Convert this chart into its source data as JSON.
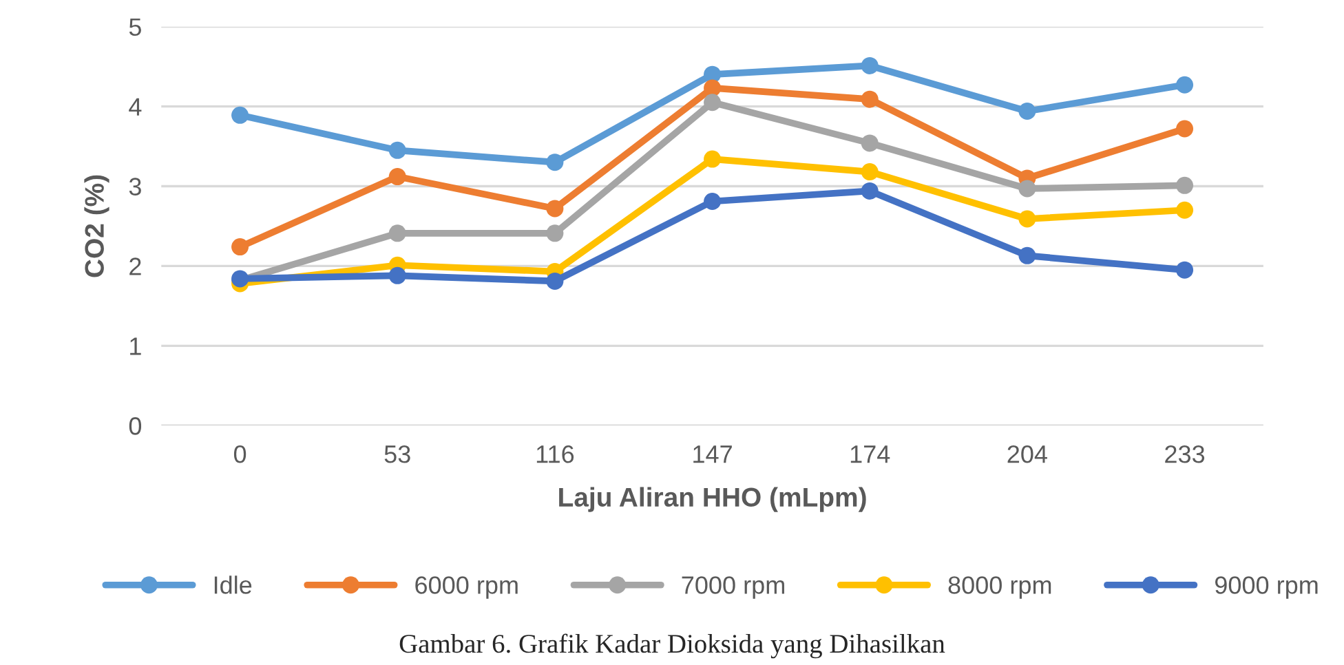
{
  "chart_data": {
    "type": "line",
    "xlabel": "Laju Aliran HHO (mLpm)",
    "ylabel": "CO2 (%)",
    "categories": [
      "0",
      "53",
      "116",
      "147",
      "174",
      "204",
      "233"
    ],
    "series": [
      {
        "name": "Idle",
        "color": "#5b9bd5",
        "values": [
          3.89,
          3.45,
          3.3,
          4.4,
          4.51,
          3.94,
          4.27
        ]
      },
      {
        "name": "6000 rpm",
        "color": "#ed7d31",
        "values": [
          2.24,
          3.12,
          2.72,
          4.23,
          4.09,
          3.1,
          3.72
        ]
      },
      {
        "name": "7000 rpm",
        "color": "#a5a5a5",
        "values": [
          1.82,
          2.41,
          2.41,
          4.05,
          3.54,
          2.97,
          3.01
        ]
      },
      {
        "name": "8000 rpm",
        "color": "#ffc000",
        "values": [
          1.78,
          2.01,
          1.93,
          3.34,
          3.18,
          2.59,
          2.7
        ]
      },
      {
        "name": "9000 rpm",
        "color": "#4472c4",
        "values": [
          1.84,
          1.88,
          1.81,
          2.81,
          2.94,
          2.13,
          1.95
        ]
      }
    ],
    "ylim": [
      0,
      5
    ],
    "yticks": [
      0,
      1,
      2,
      3,
      4,
      5
    ],
    "grid": "y",
    "legend": "bottom",
    "marker": "circle",
    "line_style": "solid",
    "annotations": [
      "Gambar 6. Grafik Kadar Dioksida yang Dihasilkan"
    ]
  }
}
